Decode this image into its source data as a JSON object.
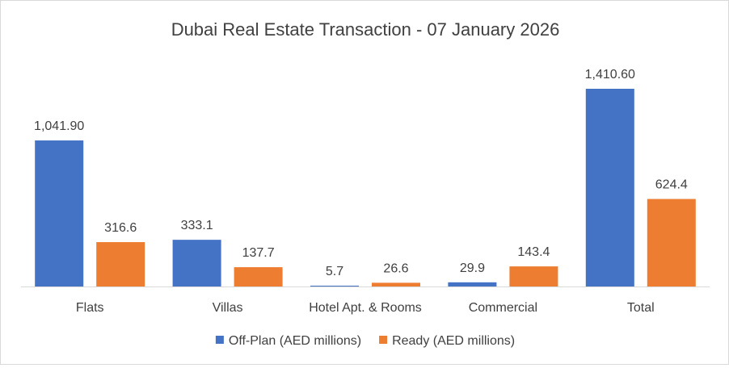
{
  "chart_data": {
    "type": "bar",
    "title": "Dubai Real Estate Transaction - 07 January 2026",
    "xlabel": "",
    "ylabel": "",
    "categories": [
      "Flats",
      "Villas",
      "Hotel Apt. & Rooms",
      "Commercial",
      "Total"
    ],
    "series": [
      {
        "name": "Off-Plan (AED millions)",
        "color": "#4472c4",
        "values": [
          1041.9,
          333.1,
          5.7,
          29.9,
          1410.6
        ],
        "labels": [
          "1,041.90",
          "333.1",
          "5.7",
          "29.9",
          "1,410.60"
        ]
      },
      {
        "name": "Ready (AED millions)",
        "color": "#ed7d31",
        "values": [
          316.6,
          137.7,
          26.6,
          143.4,
          624.4
        ],
        "labels": [
          "316.6",
          "137.7",
          "26.6",
          "143.4",
          "624.4"
        ]
      }
    ],
    "ylim": [
      0,
      1410.6
    ],
    "grid": false,
    "legend_position": "bottom",
    "data_labels": true
  }
}
